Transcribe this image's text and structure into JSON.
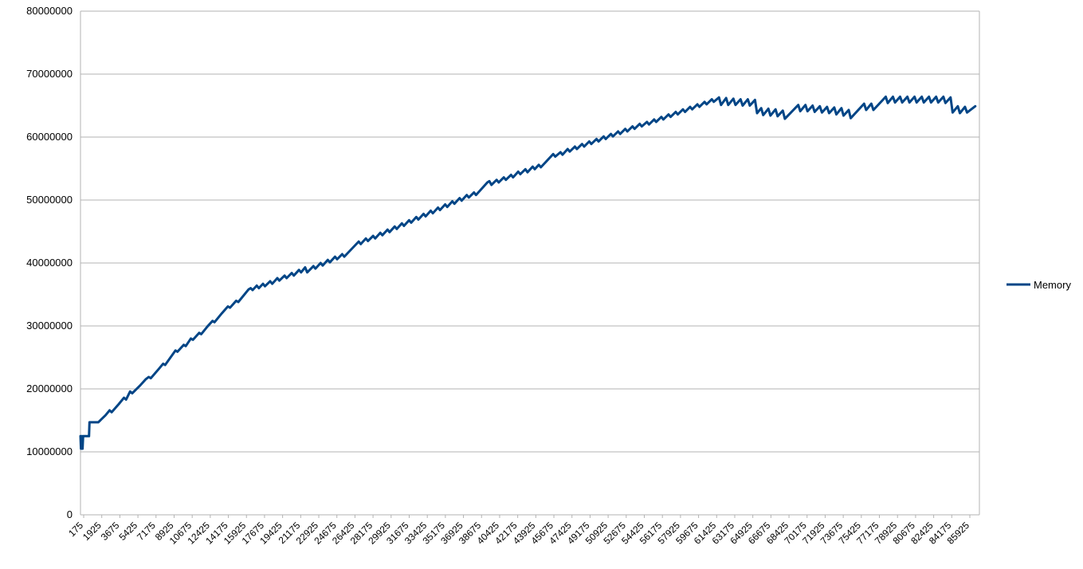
{
  "chart_data": {
    "type": "line",
    "title": "",
    "xlabel": "",
    "ylabel": "",
    "ylim": [
      0,
      80000000
    ],
    "yticks": [
      "0",
      "10000000",
      "20000000",
      "30000000",
      "40000000",
      "50000000",
      "60000000",
      "70000000",
      "80000000"
    ],
    "xlim": [
      175,
      87500
    ],
    "xticks": [
      "175",
      "1925",
      "3675",
      "5425",
      "7175",
      "8925",
      "10675",
      "12425",
      "14175",
      "15925",
      "17675",
      "19425",
      "21175",
      "22925",
      "24675",
      "26425",
      "28175",
      "29925",
      "31675",
      "33425",
      "35175",
      "36925",
      "38675",
      "40425",
      "42175",
      "43925",
      "45675",
      "47425",
      "49175",
      "50925",
      "52675",
      "54425",
      "56175",
      "57925",
      "59675",
      "61425",
      "63175",
      "64925",
      "66675",
      "68425",
      "70175",
      "71925",
      "73675",
      "75425",
      "77175",
      "78925",
      "80675",
      "82425",
      "84175",
      "85925"
    ],
    "grid": true,
    "legend": "right",
    "series": [
      {
        "name": "Memory",
        "color": "#004586",
        "points": [
          [
            175,
            12500000
          ],
          [
            220,
            10500000
          ],
          [
            260,
            12500000
          ],
          [
            300,
            10500000
          ],
          [
            340,
            12500000
          ],
          [
            380,
            10500000
          ],
          [
            430,
            12500000
          ],
          [
            1000,
            12500000
          ],
          [
            1050,
            14700000
          ],
          [
            1900,
            14700000
          ],
          [
            2600,
            15800000
          ],
          [
            3000,
            16600000
          ],
          [
            3200,
            16300000
          ],
          [
            3900,
            17600000
          ],
          [
            4400,
            18600000
          ],
          [
            4600,
            18300000
          ],
          [
            5000,
            19600000
          ],
          [
            5200,
            19300000
          ],
          [
            6000,
            20600000
          ],
          [
            6500,
            21500000
          ],
          [
            6800,
            21900000
          ],
          [
            7000,
            21700000
          ],
          [
            7800,
            23200000
          ],
          [
            8200,
            24000000
          ],
          [
            8400,
            23800000
          ],
          [
            9100,
            25400000
          ],
          [
            9400,
            26100000
          ],
          [
            9600,
            25900000
          ],
          [
            10200,
            27000000
          ],
          [
            10400,
            26800000
          ],
          [
            10900,
            28000000
          ],
          [
            11100,
            27800000
          ],
          [
            11700,
            28900000
          ],
          [
            11900,
            28700000
          ],
          [
            12500,
            29900000
          ],
          [
            13000,
            30800000
          ],
          [
            13200,
            30600000
          ],
          [
            13900,
            32000000
          ],
          [
            14500,
            33100000
          ],
          [
            14700,
            32900000
          ],
          [
            15300,
            34000000
          ],
          [
            15500,
            33800000
          ],
          [
            16500,
            35800000
          ],
          [
            16700,
            36000000
          ],
          [
            16900,
            35700000
          ],
          [
            17300,
            36400000
          ],
          [
            17500,
            36000000
          ],
          [
            17900,
            36700000
          ],
          [
            18100,
            36300000
          ],
          [
            18600,
            37100000
          ],
          [
            18800,
            36700000
          ],
          [
            19300,
            37600000
          ],
          [
            19500,
            37200000
          ],
          [
            20000,
            38000000
          ],
          [
            20200,
            37600000
          ],
          [
            20700,
            38400000
          ],
          [
            20900,
            38000000
          ],
          [
            21400,
            38900000
          ],
          [
            21600,
            38500000
          ],
          [
            22000,
            39300000
          ],
          [
            22200,
            38500000
          ],
          [
            22800,
            39500000
          ],
          [
            23000,
            39100000
          ],
          [
            23500,
            40000000
          ],
          [
            23700,
            39600000
          ],
          [
            24200,
            40500000
          ],
          [
            24400,
            40100000
          ],
          [
            24900,
            41000000
          ],
          [
            25100,
            40600000
          ],
          [
            25600,
            41400000
          ],
          [
            25800,
            41000000
          ],
          [
            27200,
            43400000
          ],
          [
            27400,
            43000000
          ],
          [
            27900,
            43900000
          ],
          [
            28100,
            43500000
          ],
          [
            28600,
            44300000
          ],
          [
            28800,
            43900000
          ],
          [
            29300,
            44800000
          ],
          [
            29500,
            44400000
          ],
          [
            30000,
            45300000
          ],
          [
            30200,
            44900000
          ],
          [
            30700,
            45800000
          ],
          [
            30900,
            45400000
          ],
          [
            31400,
            46300000
          ],
          [
            31600,
            45900000
          ],
          [
            32100,
            46800000
          ],
          [
            32300,
            46400000
          ],
          [
            32800,
            47300000
          ],
          [
            33000,
            46900000
          ],
          [
            33500,
            47800000
          ],
          [
            33700,
            47400000
          ],
          [
            34200,
            48300000
          ],
          [
            34400,
            47900000
          ],
          [
            34900,
            48800000
          ],
          [
            35100,
            48400000
          ],
          [
            35600,
            49300000
          ],
          [
            35800,
            48900000
          ],
          [
            36300,
            49800000
          ],
          [
            36500,
            49400000
          ],
          [
            37000,
            50300000
          ],
          [
            37200,
            49900000
          ],
          [
            37700,
            50800000
          ],
          [
            37900,
            50400000
          ],
          [
            38400,
            51200000
          ],
          [
            38600,
            50800000
          ],
          [
            39700,
            52800000
          ],
          [
            39900,
            53000000
          ],
          [
            40100,
            52400000
          ],
          [
            40600,
            53200000
          ],
          [
            40800,
            52800000
          ],
          [
            41300,
            53600000
          ],
          [
            41500,
            53200000
          ],
          [
            42000,
            54000000
          ],
          [
            42200,
            53600000
          ],
          [
            42700,
            54500000
          ],
          [
            42900,
            54100000
          ],
          [
            43400,
            54900000
          ],
          [
            43600,
            54400000
          ],
          [
            44100,
            55300000
          ],
          [
            44300,
            54900000
          ],
          [
            44700,
            55600000
          ],
          [
            44900,
            55200000
          ],
          [
            46100,
            57300000
          ],
          [
            46300,
            56900000
          ],
          [
            46800,
            57600000
          ],
          [
            47000,
            57200000
          ],
          [
            47500,
            58100000
          ],
          [
            47700,
            57700000
          ],
          [
            48200,
            58500000
          ],
          [
            48400,
            58100000
          ],
          [
            48900,
            58900000
          ],
          [
            49100,
            58500000
          ],
          [
            49600,
            59300000
          ],
          [
            49800,
            58900000
          ],
          [
            50300,
            59700000
          ],
          [
            50500,
            59300000
          ],
          [
            51000,
            60100000
          ],
          [
            51200,
            59700000
          ],
          [
            51700,
            60500000
          ],
          [
            51900,
            60100000
          ],
          [
            52400,
            60900000
          ],
          [
            52600,
            60500000
          ],
          [
            53100,
            61300000
          ],
          [
            53300,
            60900000
          ],
          [
            53800,
            61700000
          ],
          [
            54000,
            61300000
          ],
          [
            54500,
            62100000
          ],
          [
            54700,
            61700000
          ],
          [
            55200,
            62400000
          ],
          [
            55400,
            62000000
          ],
          [
            55900,
            62800000
          ],
          [
            56100,
            62400000
          ],
          [
            56600,
            63200000
          ],
          [
            56800,
            62800000
          ],
          [
            57300,
            63600000
          ],
          [
            57500,
            63200000
          ],
          [
            58000,
            64000000
          ],
          [
            58200,
            63600000
          ],
          [
            58700,
            64400000
          ],
          [
            58900,
            64000000
          ],
          [
            59400,
            64800000
          ],
          [
            59600,
            64400000
          ],
          [
            60100,
            65200000
          ],
          [
            60300,
            64800000
          ],
          [
            60800,
            65600000
          ],
          [
            61000,
            65200000
          ],
          [
            61500,
            66000000
          ],
          [
            61700,
            65600000
          ],
          [
            62200,
            66300000
          ],
          [
            62400,
            65100000
          ],
          [
            62900,
            66200000
          ],
          [
            63100,
            65100000
          ],
          [
            63600,
            66100000
          ],
          [
            63800,
            65100000
          ],
          [
            64300,
            66000000
          ],
          [
            64500,
            65000000
          ],
          [
            65000,
            66000000
          ],
          [
            65200,
            65000000
          ],
          [
            65700,
            65900000
          ],
          [
            65900,
            63800000
          ],
          [
            66300,
            64600000
          ],
          [
            66500,
            63500000
          ],
          [
            67000,
            64500000
          ],
          [
            67200,
            63400000
          ],
          [
            67700,
            64400000
          ],
          [
            67900,
            63300000
          ],
          [
            68400,
            64200000
          ],
          [
            68600,
            62900000
          ],
          [
            69900,
            65100000
          ],
          [
            70100,
            64100000
          ],
          [
            70600,
            65100000
          ],
          [
            70800,
            64100000
          ],
          [
            71300,
            65000000
          ],
          [
            71500,
            64000000
          ],
          [
            72000,
            64900000
          ],
          [
            72200,
            63900000
          ],
          [
            72700,
            64800000
          ],
          [
            72900,
            63800000
          ],
          [
            73400,
            64700000
          ],
          [
            73600,
            63600000
          ],
          [
            74100,
            64600000
          ],
          [
            74300,
            63400000
          ],
          [
            74800,
            64300000
          ],
          [
            75000,
            63000000
          ],
          [
            76300,
            65300000
          ],
          [
            76500,
            64300000
          ],
          [
            77000,
            65300000
          ],
          [
            77200,
            64300000
          ],
          [
            78400,
            66400000
          ],
          [
            78600,
            65400000
          ],
          [
            79100,
            66400000
          ],
          [
            79300,
            65500000
          ],
          [
            79800,
            66400000
          ],
          [
            80000,
            65500000
          ],
          [
            80500,
            66400000
          ],
          [
            80700,
            65500000
          ],
          [
            81200,
            66400000
          ],
          [
            81400,
            65500000
          ],
          [
            81900,
            66400000
          ],
          [
            82100,
            65500000
          ],
          [
            82600,
            66400000
          ],
          [
            82800,
            65500000
          ],
          [
            83300,
            66400000
          ],
          [
            83500,
            65500000
          ],
          [
            84000,
            66400000
          ],
          [
            84200,
            65400000
          ],
          [
            84700,
            66300000
          ],
          [
            84900,
            63900000
          ],
          [
            85400,
            64900000
          ],
          [
            85600,
            63800000
          ],
          [
            86100,
            64800000
          ],
          [
            86300,
            63900000
          ],
          [
            87100,
            64900000
          ]
        ]
      }
    ]
  }
}
